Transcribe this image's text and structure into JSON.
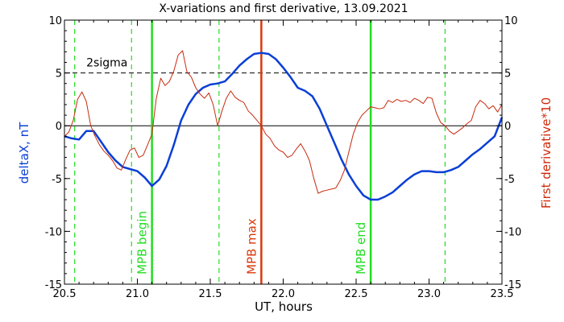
{
  "chart_data": {
    "type": "line",
    "title": "X-variations and first derivative, 13.09.2021",
    "xlabel": "UT, hours",
    "ylabel_left": "deltaX, nT",
    "ylabel_right": "First derivative*10",
    "xlim": [
      20.5,
      23.5
    ],
    "ylim": [
      -15,
      10
    ],
    "x_ticks": [
      "20.5",
      "21.0",
      "21.5",
      "22.0",
      "22.5",
      "23.0",
      "23.5"
    ],
    "y_ticks": [
      "10",
      "5",
      "0",
      "-5",
      "-10",
      "-15"
    ],
    "grid": false,
    "series": [
      {
        "name": "deltaX, nT",
        "color": "#0b3fd6",
        "x": [
          20.5,
          20.55,
          20.6,
          20.65,
          20.7,
          20.75,
          20.8,
          20.85,
          20.9,
          20.95,
          21.0,
          21.05,
          21.1,
          21.15,
          21.2,
          21.25,
          21.3,
          21.35,
          21.4,
          21.45,
          21.5,
          21.55,
          21.6,
          21.65,
          21.7,
          21.75,
          21.8,
          21.85,
          21.9,
          21.95,
          22.0,
          22.05,
          22.1,
          22.15,
          22.2,
          22.25,
          22.3,
          22.35,
          22.4,
          22.45,
          22.5,
          22.55,
          22.6,
          22.65,
          22.7,
          22.75,
          22.8,
          22.85,
          22.9,
          22.95,
          23.0,
          23.05,
          23.1,
          23.15,
          23.2,
          23.25,
          23.3,
          23.35,
          23.4,
          23.45,
          23.5
        ],
        "values": [
          -1.0,
          -1.2,
          -1.3,
          -0.5,
          -0.5,
          -1.5,
          -2.5,
          -3.3,
          -3.9,
          -4.1,
          -4.3,
          -4.9,
          -5.7,
          -5.1,
          -3.8,
          -1.8,
          0.5,
          2.0,
          3.0,
          3.6,
          3.9,
          4.0,
          4.2,
          4.9,
          5.7,
          6.3,
          6.8,
          6.9,
          6.8,
          6.3,
          5.5,
          4.6,
          3.6,
          3.3,
          2.8,
          1.6,
          0.0,
          -1.6,
          -3.2,
          -4.6,
          -5.7,
          -6.6,
          -7.0,
          -7.0,
          -6.7,
          -6.3,
          -5.7,
          -5.1,
          -4.6,
          -4.3,
          -4.3,
          -4.4,
          -4.4,
          -4.2,
          -3.9,
          -3.3,
          -2.7,
          -2.2,
          -1.6,
          -1.0,
          0.8
        ]
      },
      {
        "name": "First derivative*10",
        "color": "#c62a0e",
        "x": [
          20.5,
          20.53,
          20.56,
          20.59,
          20.62,
          20.65,
          20.68,
          20.71,
          20.74,
          20.77,
          20.8,
          20.83,
          20.86,
          20.89,
          20.92,
          20.95,
          20.98,
          21.01,
          21.04,
          21.07,
          21.1,
          21.13,
          21.16,
          21.19,
          21.22,
          21.25,
          21.28,
          21.31,
          21.34,
          21.37,
          21.4,
          21.43,
          21.46,
          21.49,
          21.52,
          21.55,
          21.58,
          21.61,
          21.64,
          21.67,
          21.7,
          21.73,
          21.76,
          21.79,
          21.82,
          21.85,
          21.88,
          21.91,
          21.94,
          21.97,
          22.0,
          22.03,
          22.06,
          22.09,
          22.12,
          22.15,
          22.18,
          22.21,
          22.24,
          22.27,
          22.3,
          22.33,
          22.36,
          22.39,
          22.42,
          22.45,
          22.48,
          22.51,
          22.54,
          22.57,
          22.6,
          22.63,
          22.66,
          22.69,
          22.72,
          22.75,
          22.78,
          22.81,
          22.84,
          22.87,
          22.9,
          22.93,
          22.96,
          22.99,
          23.02,
          23.05,
          23.08,
          23.11,
          23.14,
          23.17,
          23.2,
          23.23,
          23.26,
          23.29,
          23.32,
          23.35,
          23.38,
          23.41,
          23.44,
          23.47,
          23.5
        ],
        "values": [
          -1.0,
          -0.6,
          0.5,
          2.5,
          3.2,
          2.3,
          0.0,
          -1.0,
          -1.8,
          -2.4,
          -2.8,
          -3.3,
          -4.0,
          -4.2,
          -3.2,
          -2.3,
          -2.1,
          -3.0,
          -2.8,
          -1.8,
          -0.8,
          2.6,
          4.5,
          3.8,
          4.2,
          5.2,
          6.7,
          7.1,
          5.1,
          4.6,
          3.6,
          3.0,
          2.6,
          3.1,
          2.0,
          0.0,
          1.4,
          2.6,
          3.3,
          2.7,
          2.4,
          2.2,
          1.4,
          1.0,
          0.5,
          0.0,
          -0.8,
          -1.2,
          -1.9,
          -2.3,
          -2.5,
          -3.0,
          -2.8,
          -2.2,
          -1.7,
          -2.4,
          -3.3,
          -5.0,
          -6.4,
          -6.2,
          -6.1,
          -6.0,
          -5.9,
          -5.2,
          -4.2,
          -2.5,
          -0.8,
          0.3,
          1.0,
          1.4,
          1.8,
          1.7,
          1.6,
          1.7,
          2.4,
          2.2,
          2.5,
          2.3,
          2.4,
          2.2,
          2.6,
          2.4,
          2.1,
          2.7,
          2.6,
          1.2,
          0.3,
          0.0,
          -0.5,
          -0.8,
          -0.5,
          -0.2,
          0.2,
          0.5,
          1.8,
          2.4,
          2.1,
          1.6,
          1.9,
          1.3,
          2.0
        ]
      }
    ],
    "hlines": [
      {
        "label": "2sigma",
        "y": 5,
        "style": "dashed",
        "color": "#000000"
      },
      {
        "label": "",
        "y": 0,
        "style": "solid",
        "color": "#000000"
      }
    ],
    "vlines": [
      {
        "x": 20.57,
        "style": "dashed",
        "color": "#22dd22",
        "label": ""
      },
      {
        "x": 20.96,
        "style": "dashed",
        "color": "#22dd22",
        "label": ""
      },
      {
        "x": 21.1,
        "style": "solid",
        "color": "#22dd22",
        "label": "MPB begin"
      },
      {
        "x": 21.56,
        "style": "dashed",
        "color": "#22dd22",
        "label": ""
      },
      {
        "x": 21.85,
        "style": "solid",
        "color": "#d83a0c",
        "label": "MPB max"
      },
      {
        "x": 22.6,
        "style": "solid",
        "color": "#22dd22",
        "label": "MPB end"
      },
      {
        "x": 23.11,
        "style": "dashed",
        "color": "#22dd22",
        "label": ""
      }
    ]
  }
}
